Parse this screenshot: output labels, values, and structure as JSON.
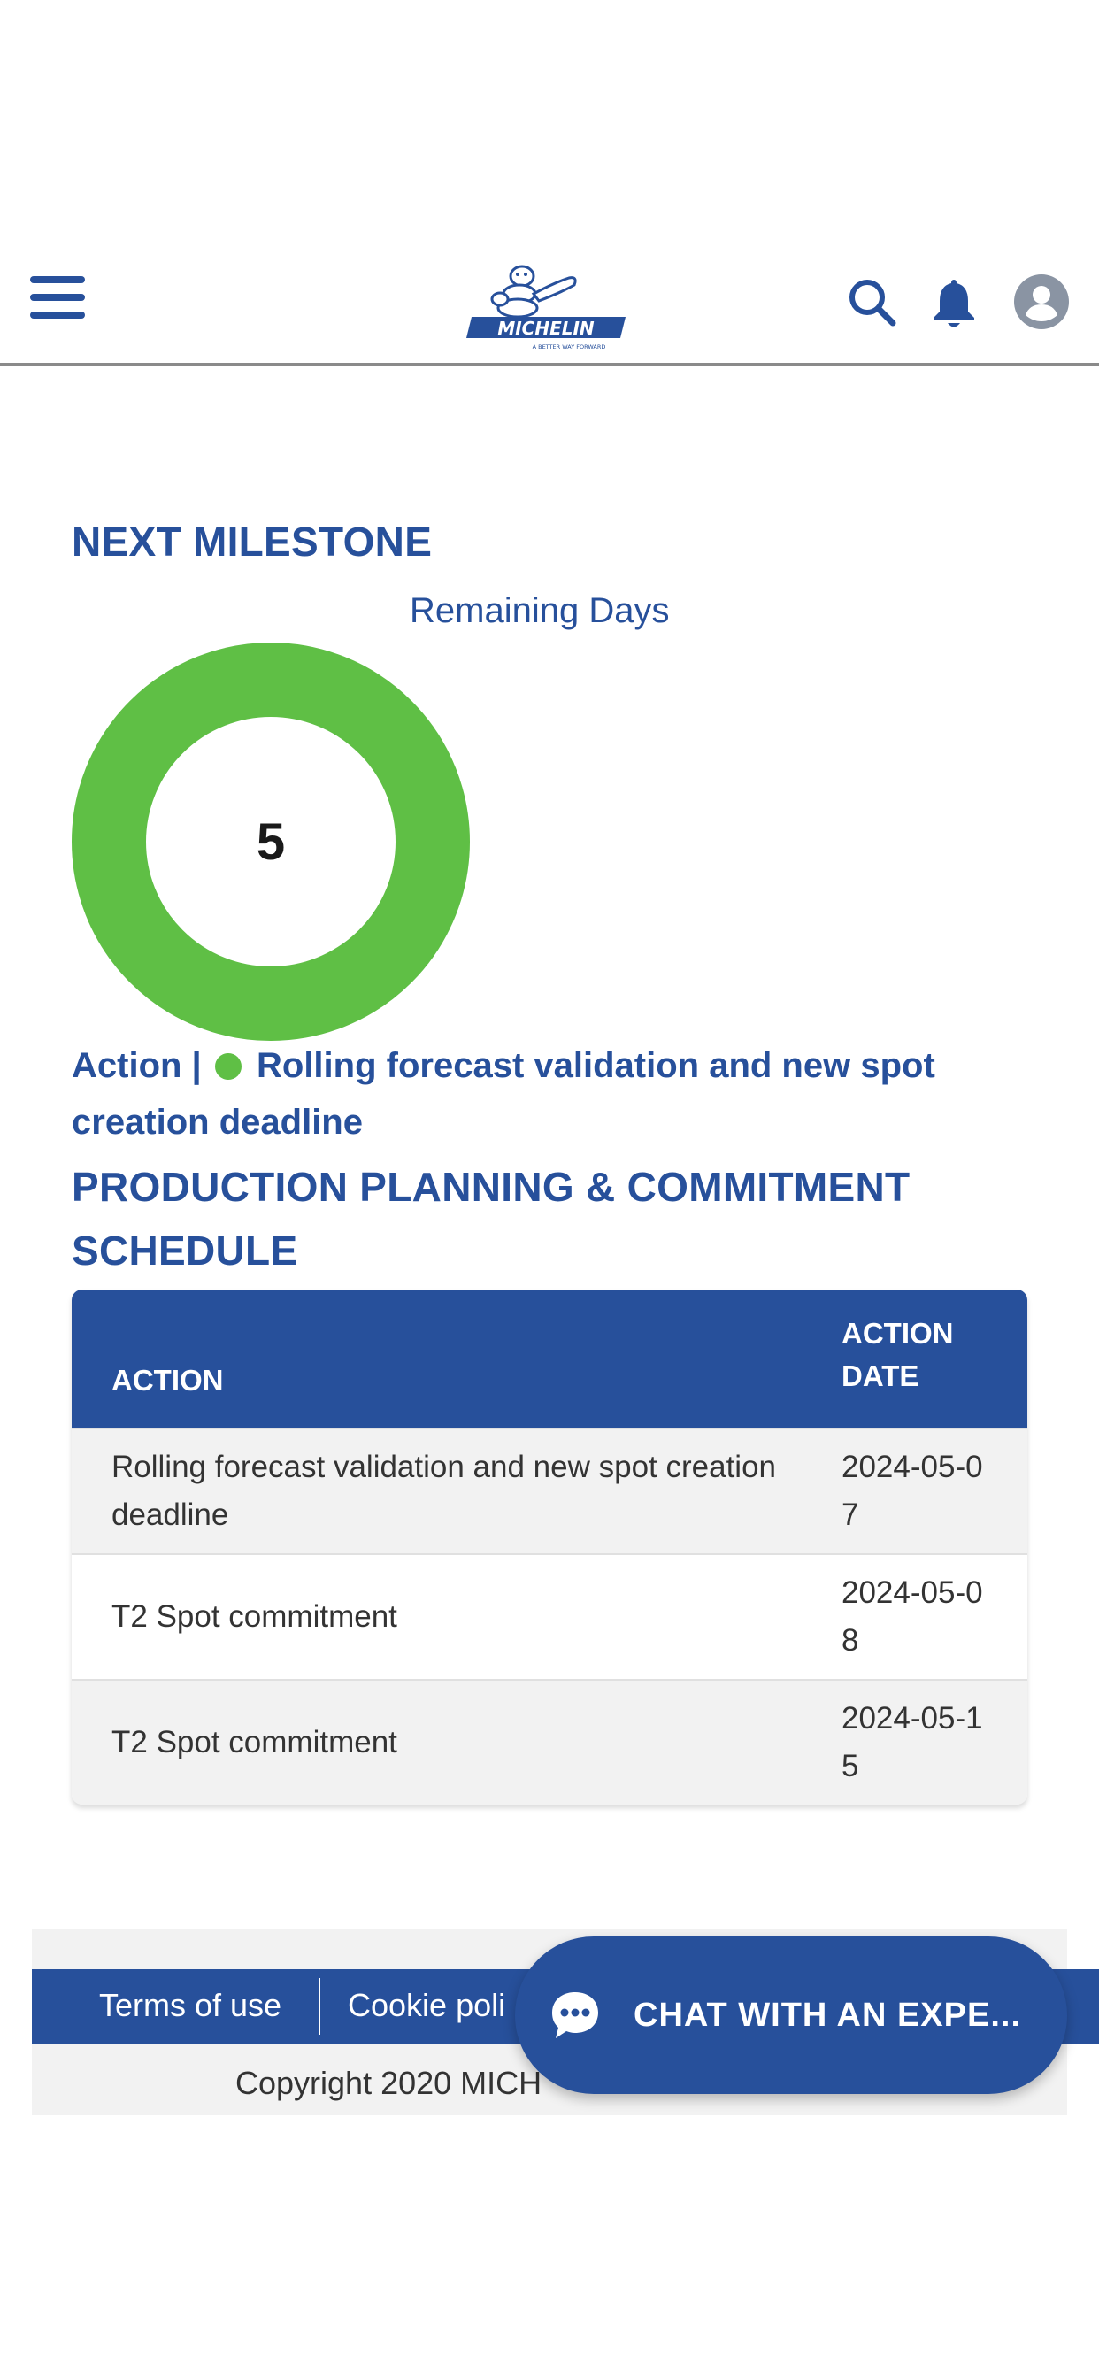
{
  "header": {
    "logo_text": "MICHELIN",
    "logo_tagline": "A BETTER WAY FORWARD",
    "icons": [
      "menu-icon",
      "search-icon",
      "bell-icon",
      "user-avatar-icon"
    ]
  },
  "milestone": {
    "title": "NEXT MILESTONE",
    "chart_label": "Remaining Days",
    "remaining_days": "5",
    "action_prefix": "Action |",
    "action_text": "Rolling forecast validation and new spot creation deadline",
    "status_color": "#5fbf45"
  },
  "chart_data": {
    "type": "pie",
    "title": "Remaining Days",
    "center_label": "5",
    "values": [
      1
    ],
    "colors": [
      "#5fbf45"
    ]
  },
  "schedule": {
    "title": "PRODUCTION PLANNING & COMMITMENT SCHEDULE",
    "columns": [
      "ACTION",
      "ACTION DATE"
    ],
    "rows": [
      {
        "action": "Rolling forecast validation and new spot creation deadline",
        "date": "2024-05-07"
      },
      {
        "action": "T2 Spot commitment",
        "date": "2024-05-08"
      },
      {
        "action": "T2 Spot commitment",
        "date": "2024-05-15"
      }
    ]
  },
  "footer": {
    "terms_label": "Terms of use",
    "cookie_label": "Cookie poli",
    "copyright": "Copyright 2020 MICH"
  },
  "chat": {
    "label": "CHAT WITH AN EXPE..."
  },
  "colors": {
    "brand_blue": "#27509b",
    "accent_green": "#5fbf45"
  }
}
